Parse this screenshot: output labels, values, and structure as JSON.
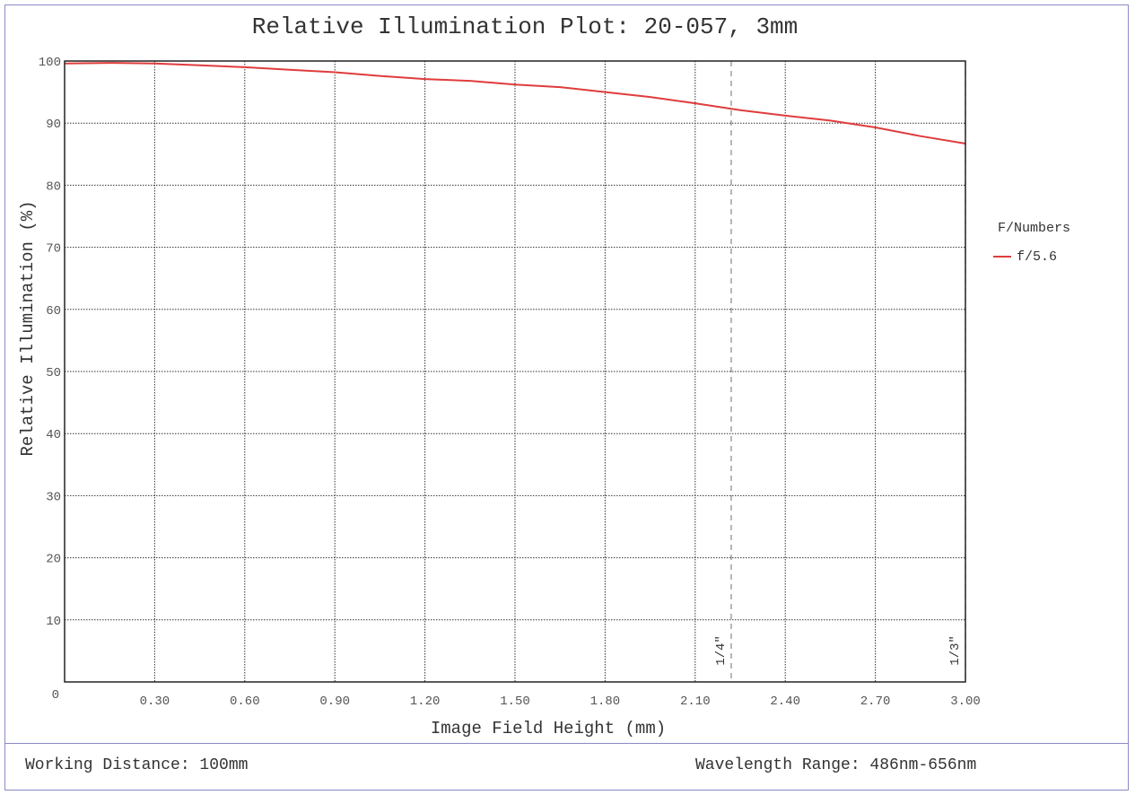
{
  "chart_data": {
    "type": "line",
    "title": "Relative Illumination Plot: 20-057, 3mm",
    "xlabel": "Image Field Height (mm)",
    "ylabel": "Relative Illumination (%)",
    "xlim": [
      0,
      3.0
    ],
    "ylim": [
      0,
      100
    ],
    "x_ticks": [
      0.3,
      0.6,
      0.9,
      1.2,
      1.5,
      1.8,
      2.1,
      2.4,
      2.7,
      3.0
    ],
    "x_tick_labels": [
      "0.30",
      "0.60",
      "0.90",
      "1.20",
      "1.50",
      "1.80",
      "2.10",
      "2.40",
      "2.70",
      "3.00"
    ],
    "y_ticks": [
      10,
      20,
      30,
      40,
      50,
      60,
      70,
      80,
      90,
      100
    ],
    "y_tick_labels": [
      "10",
      "20",
      "30",
      "40",
      "50",
      "60",
      "70",
      "80",
      "90",
      "100"
    ],
    "origin_label": "0",
    "grid": true,
    "legend": {
      "title": "F/Numbers",
      "placement": "right"
    },
    "series": [
      {
        "name": "f/5.6",
        "color": "#e03c3c",
        "x": [
          0,
          0.15,
          0.3,
          0.45,
          0.6,
          0.75,
          0.9,
          1.05,
          1.2,
          1.35,
          1.5,
          1.65,
          1.8,
          1.95,
          2.1,
          2.25,
          2.4,
          2.55,
          2.7,
          2.85,
          3.0
        ],
        "y": [
          99.6,
          99.7,
          99.6,
          99.3,
          99.0,
          98.6,
          98.2,
          97.6,
          97.1,
          96.8,
          96.2,
          95.8,
          95.0,
          94.2,
          93.2,
          92.1,
          91.2,
          90.4,
          89.3,
          87.9,
          86.7
        ]
      }
    ],
    "annotations": [
      {
        "label": "1/4\"",
        "x": 2.22,
        "style": "dashed"
      },
      {
        "label": "1/3\"",
        "x": 3.0,
        "style": "dashed"
      }
    ]
  },
  "footer": {
    "working_distance": "Working Distance: 100mm",
    "wavelength_range": "Wavelength Range: 486nm-656nm"
  }
}
